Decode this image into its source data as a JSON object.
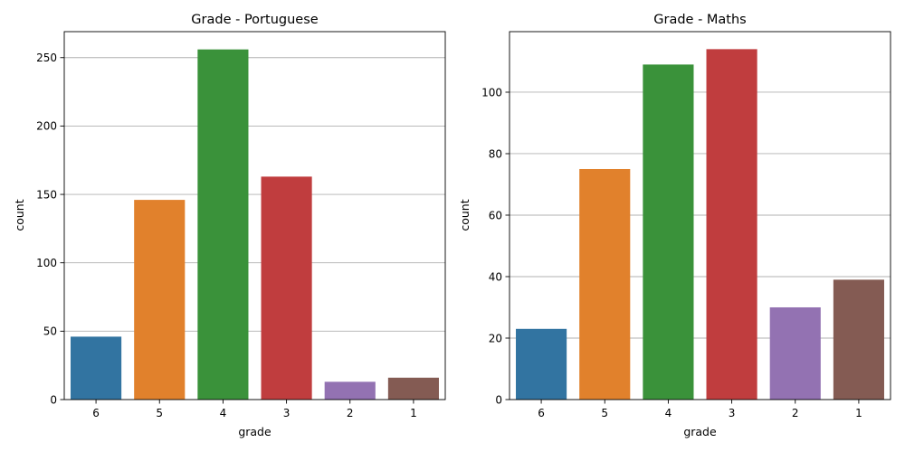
{
  "colors": [
    "#3274a1",
    "#e1812c",
    "#3a923a",
    "#c03d3e",
    "#9372b2",
    "#845b53"
  ],
  "chart_data": [
    {
      "type": "bar",
      "title": "Grade - Portuguese",
      "xlabel": "grade",
      "ylabel": "count",
      "categories": [
        "6",
        "5",
        "4",
        "3",
        "2",
        "1"
      ],
      "values": [
        46,
        146,
        256,
        163,
        13,
        16
      ],
      "ylim": [
        0,
        269
      ],
      "yticks": [
        0,
        50,
        100,
        150,
        200,
        250
      ],
      "grid": "y"
    },
    {
      "type": "bar",
      "title": "Grade - Maths",
      "xlabel": "grade",
      "ylabel": "count",
      "categories": [
        "6",
        "5",
        "4",
        "3",
        "2",
        "1"
      ],
      "values": [
        23,
        75,
        109,
        114,
        30,
        39
      ],
      "ylim": [
        0,
        119.7
      ],
      "yticks": [
        0,
        20,
        40,
        60,
        80,
        100
      ],
      "grid": "y"
    }
  ]
}
